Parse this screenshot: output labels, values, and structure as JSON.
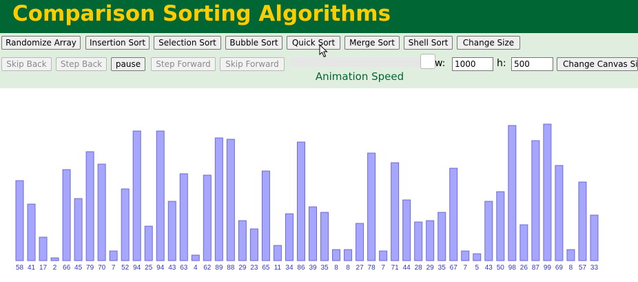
{
  "title": "Comparison Sorting Algorithms",
  "toolbar": {
    "randomize": "Randomize Array",
    "insertion": "Insertion Sort",
    "selection": "Selection Sort",
    "bubble": "Bubble Sort",
    "quick": "Quick Sort",
    "merge": "Merge Sort",
    "shell": "Shell Sort",
    "change_size": "Change Size"
  },
  "playback": {
    "skip_back": "Skip Back",
    "step_back": "Step Back",
    "pause": "pause",
    "step_forward": "Step Forward",
    "skip_forward": "Skip Forward"
  },
  "speed": {
    "label": "Animation Speed",
    "value": 1.0
  },
  "canvas": {
    "w_label": "w:",
    "w_value": "1000",
    "h_label": "h:",
    "h_value": "500",
    "change_button": "Change Canvas Size"
  },
  "colors": {
    "header_bg": "#006633",
    "title": "#ffcc00",
    "controls_bg": "#e0eee0",
    "bar_fill": "#a6a6ff",
    "bar_stroke": "#6b6bd6",
    "value_label": "#3333cc"
  },
  "chart_data": {
    "type": "bar",
    "values": [
      58,
      41,
      17,
      2,
      66,
      45,
      79,
      70,
      7,
      52,
      94,
      25,
      94,
      43,
      63,
      4,
      62,
      89,
      88,
      29,
      23,
      65,
      11,
      34,
      86,
      39,
      35,
      8,
      8,
      27,
      78,
      7,
      71,
      44,
      28,
      29,
      35,
      67,
      7,
      5,
      43,
      50,
      98,
      26,
      87,
      99,
      69,
      8,
      57,
      33
    ],
    "ylim": [
      0,
      100
    ]
  }
}
